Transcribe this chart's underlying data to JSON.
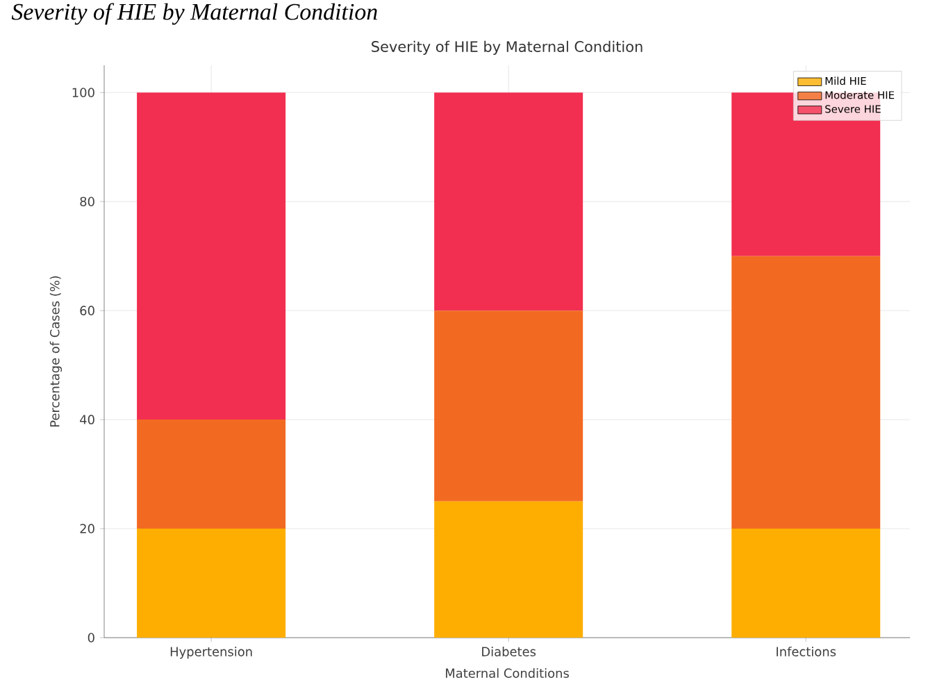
{
  "chart_data": {
    "type": "bar",
    "stacked": true,
    "title": "Severity of HIE by Maternal Condition",
    "xlabel": "Maternal Conditions",
    "ylabel": "Percentage of Cases (%)",
    "annotations": [
      "Severity of HIE by Maternal Condition"
    ],
    "categories": [
      "Hypertension",
      "Diabetes",
      "Infections"
    ],
    "series": [
      {
        "name": "Mild HIE",
        "color": "#fdae00",
        "values": [
          20,
          25,
          20
        ]
      },
      {
        "name": "Moderate HIE",
        "color": "#f26a22",
        "values": [
          20,
          35,
          50
        ]
      },
      {
        "name": "Severe HIE",
        "color": "#f22f50",
        "values": [
          60,
          40,
          30
        ]
      }
    ],
    "ylim": [
      0,
      105
    ],
    "yticks": [
      0,
      20,
      40,
      60,
      80,
      100
    ],
    "grid": true,
    "legend": "top right"
  }
}
